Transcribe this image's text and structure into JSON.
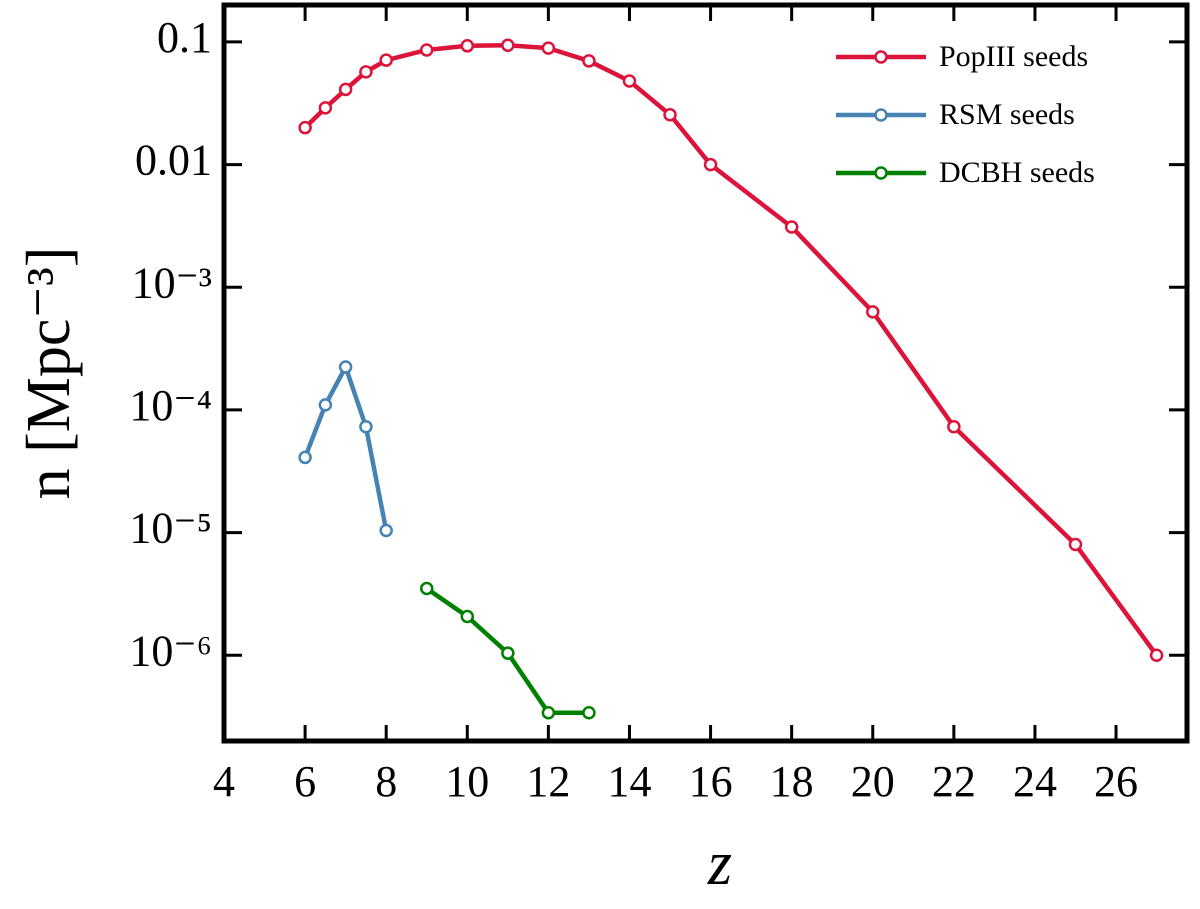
{
  "chart_data": {
    "type": "line",
    "xlabel": "z",
    "ylabel": "n [Mpc⁻³]",
    "xlim": [
      4,
      27.75
    ],
    "xticks": [
      4,
      6,
      8,
      10,
      12,
      14,
      16,
      18,
      20,
      22,
      24,
      26
    ],
    "ylim": [
      2e-07,
      0.2
    ],
    "yscale": "log",
    "yticks": [
      0.1,
      0.01,
      {
        "value": 0.001,
        "label": "10⁻³"
      },
      {
        "value": 0.0001,
        "label": "10⁻⁴"
      },
      {
        "value": 1e-05,
        "label": "10⁻⁵"
      },
      {
        "value": 1e-06,
        "label": "10⁻⁶"
      }
    ],
    "legend": "upper right",
    "series": [
      {
        "name": "PopIII seeds",
        "color": "#dc143c",
        "x": [
          6,
          6.5,
          7,
          7.5,
          8,
          9,
          10,
          11,
          12,
          13,
          14,
          15,
          16,
          18,
          20,
          22,
          25,
          27
        ],
        "values": [
          0.02,
          0.029,
          0.041,
          0.057,
          0.071,
          0.086,
          0.093,
          0.094,
          0.089,
          0.07,
          0.048,
          0.0255,
          0.01,
          0.0031,
          0.00063,
          7.3e-05,
          8e-06,
          1e-06
        ]
      },
      {
        "name": "RSM seeds",
        "color": "#4682b4",
        "x": [
          6,
          6.5,
          7,
          7.5,
          8
        ],
        "values": [
          4.1e-05,
          0.00011,
          0.000224,
          7.3e-05,
          1.04e-05
        ]
      },
      {
        "name": "DCBH seeds",
        "color": "#008000",
        "x": [
          9,
          10,
          11,
          12,
          13
        ],
        "values": [
          3.5e-06,
          2.07e-06,
          1.04e-06,
          3.4e-07,
          3.4e-07
        ]
      }
    ]
  }
}
